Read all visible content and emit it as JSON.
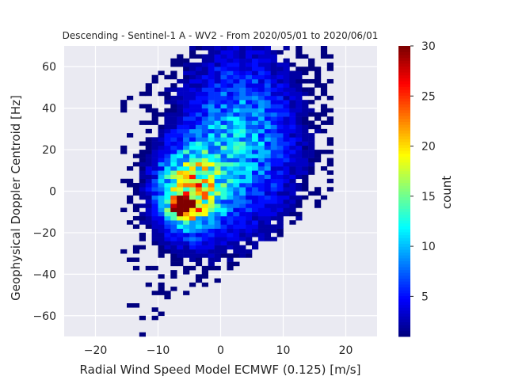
{
  "chart_data": {
    "type": "heatmap",
    "title": "Descending - Sentinel-1 A - WV2 - From 2020/05/01 to 2020/06/01",
    "xlabel": "Radial Wind Speed Model ECMWF (0.125) [m/s]",
    "ylabel": "Geophysical Doppler Centroid [Hz]",
    "xlim": [
      -25,
      25
    ],
    "ylim": [
      -70,
      70
    ],
    "x_ticks": [
      -20,
      -10,
      0,
      10,
      20
    ],
    "y_ticks": [
      -60,
      -40,
      -20,
      0,
      20,
      40,
      60
    ],
    "grid": true,
    "colormap": "jet",
    "colorbar": {
      "label": "count",
      "min": 1,
      "max": 30,
      "ticks": [
        5,
        10,
        15,
        20,
        25,
        30
      ]
    },
    "bin_width_x": 1.0,
    "bin_height_y": 2.0,
    "density_peak": {
      "x": -6,
      "y": -8,
      "count": 30
    },
    "density_clusters": [
      {
        "x": -5,
        "y": 0,
        "sx": 3.5,
        "sy": 14,
        "peak_count": 18
      },
      {
        "x": -6,
        "y": -8,
        "sx": 1.2,
        "sy": 3,
        "peak_count": 30
      },
      {
        "x": 3,
        "y": 25,
        "sx": 6,
        "sy": 28,
        "peak_count": 10
      }
    ]
  },
  "colors": {
    "axes_bg": "#eaeaf2",
    "grid": "#ffffff",
    "text": "#262626"
  }
}
